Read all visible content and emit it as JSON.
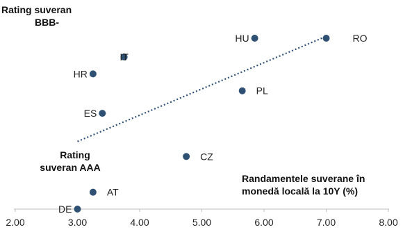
{
  "chart_data": {
    "type": "scatter",
    "xlabel": "Randamentele suverane în monedă locală la 10Y (%)",
    "xlabel_lines": [
      "Randamentele suverane în",
      "monedă locală la 10Y (%)"
    ],
    "xlim": [
      2.0,
      8.0
    ],
    "x_ticks": [
      "2.00",
      "3.00",
      "4.00",
      "5.00",
      "6.00",
      "7.00",
      "8.00"
    ],
    "y_axis": "rating (BBB- top, AAA bottom)",
    "annotations": {
      "top": [
        "Rating suveran",
        "BBB-"
      ],
      "bottom": [
        "Rating",
        "suveran AAA"
      ]
    },
    "marker_color": "#2e5073",
    "trendline": {
      "style": "dotted",
      "color": "#2e5073",
      "from": {
        "x": 3.0,
        "y": 3.4
      },
      "to": {
        "x": 7.0,
        "y": 9.0
      }
    },
    "points": [
      {
        "label": "HU",
        "x": 5.85,
        "y": 8.9,
        "label_side": "left"
      },
      {
        "label": "RO",
        "x": 7.0,
        "y": 8.9,
        "label_side": "right"
      },
      {
        "label": "IT",
        "x": 3.75,
        "y": 7.9,
        "label_side": "center"
      },
      {
        "label": "HR",
        "x": 3.25,
        "y": 7.0,
        "label_side": "left"
      },
      {
        "label": "PL",
        "x": 5.65,
        "y": 6.1,
        "label_side": "right"
      },
      {
        "label": "ES",
        "x": 3.4,
        "y": 4.9,
        "label_side": "left"
      },
      {
        "label": "CZ",
        "x": 4.75,
        "y": 2.6,
        "label_side": "right"
      },
      {
        "label": "AT",
        "x": 3.25,
        "y": 0.7,
        "label_side": "right"
      },
      {
        "label": "DE",
        "x": 3.0,
        "y": -0.2,
        "label_side": "left"
      }
    ]
  }
}
